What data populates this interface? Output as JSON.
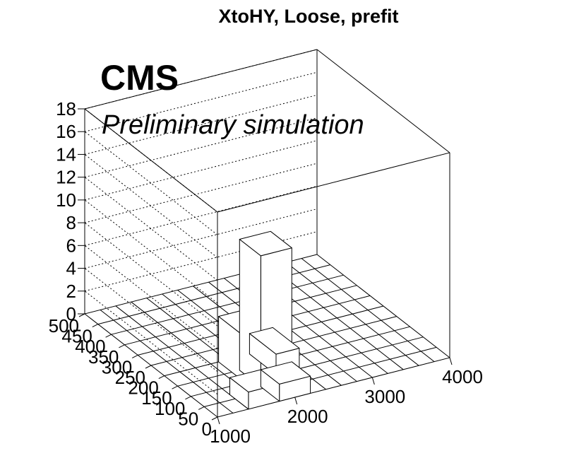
{
  "title": "XtoHY, Loose, prefit",
  "labels": {
    "cms": "CMS",
    "preliminary": "Preliminary simulation"
  },
  "chart_data": {
    "type": "lego3d",
    "title": "XtoHY, Loose, prefit",
    "x_axis": {
      "range": [
        1000,
        4000
      ],
      "ticks": [
        1000,
        2000,
        3000,
        4000
      ],
      "tick_labels": [
        "1000",
        "2000",
        "3000",
        "4000"
      ]
    },
    "y_axis": {
      "range": [
        0,
        500
      ],
      "ticks": [
        0,
        50,
        100,
        150,
        200,
        250,
        300,
        350,
        400,
        450,
        500
      ],
      "tick_labels": [
        "0",
        "50",
        "100",
        "150",
        "200",
        "250",
        "300",
        "350",
        "400",
        "450",
        "500"
      ]
    },
    "z_axis": {
      "range": [
        0,
        18
      ],
      "ticks": [
        0,
        2,
        4,
        6,
        8,
        10,
        12,
        14,
        16,
        18
      ],
      "tick_labels": [
        "0",
        "2",
        "4",
        "6",
        "8",
        "10",
        "12",
        "14",
        "16",
        "18"
      ]
    },
    "grid": true,
    "bins": [
      {
        "x": [
          1400,
          1800
        ],
        "y": [
          0,
          70
        ],
        "z": 1.5
      },
      {
        "x": [
          1800,
          2200
        ],
        "y": [
          0,
          70
        ],
        "z": 1.5
      },
      {
        "x": [
          2100,
          2400
        ],
        "y": [
          100,
          200
        ],
        "z": 1.8
      },
      {
        "x": [
          1700,
          2100
        ],
        "y": [
          100,
          200
        ],
        "z": 4.0
      },
      {
        "x": [
          1800,
          2200
        ],
        "y": [
          70,
          150
        ],
        "z": 11.5
      }
    ]
  }
}
